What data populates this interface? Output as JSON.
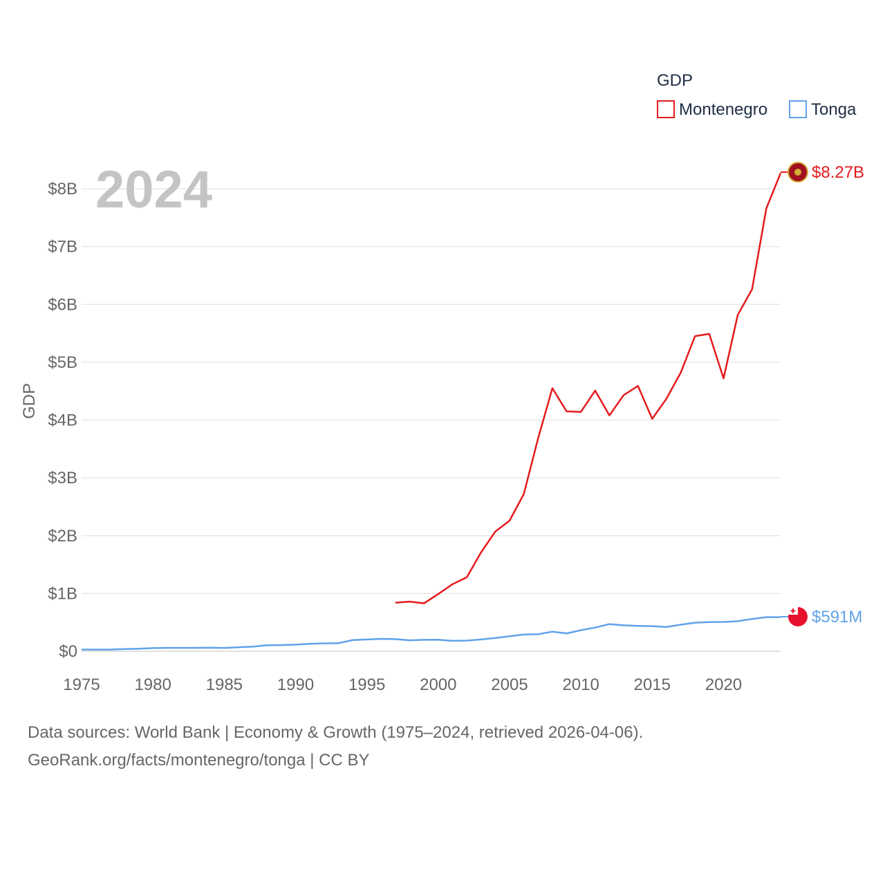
{
  "legend": {
    "title": "GDP",
    "items": [
      {
        "name": "Montenegro",
        "color": "#e41a1c"
      },
      {
        "name": "Tonga",
        "color": "#5fa2ea"
      }
    ]
  },
  "year_label": "2024",
  "end_labels": {
    "montenegro": "$8.27B",
    "tonga": "$591M"
  },
  "footer": {
    "line1": "Data sources: World Bank | Economy & Growth (1975–2024, retrieved 2026-04-06).",
    "line2": "GeoRank.org/facts/montenegro/tonga | CC BY"
  },
  "chart_data": {
    "type": "line",
    "title": "",
    "xlabel": "",
    "ylabel": "GDP",
    "xlim": [
      1975,
      2024
    ],
    "ylim": [
      0,
      8000000000
    ],
    "x_ticks": [
      1975,
      1980,
      1985,
      1990,
      1995,
      2000,
      2005,
      2010,
      2015,
      2020
    ],
    "x_tick_labels": [
      "1975",
      "1980",
      "1985",
      "1990",
      "1995",
      "2000",
      "2005",
      "2010",
      "2015",
      "2020"
    ],
    "y_ticks": [
      0,
      1000000000,
      2000000000,
      3000000000,
      4000000000,
      5000000000,
      6000000000,
      7000000000,
      8000000000
    ],
    "y_tick_labels": [
      "$0",
      "$1B",
      "$2B",
      "$3B",
      "$4B",
      "$5B",
      "$6B",
      "$7B",
      "$8B"
    ],
    "grid": true,
    "legend_position": "top-right",
    "series": [
      {
        "name": "Montenegro",
        "color": "#e41a1c",
        "x": [
          1997,
          1998,
          1999,
          2000,
          2001,
          2002,
          2003,
          2004,
          2005,
          2006,
          2007,
          2008,
          2009,
          2010,
          2011,
          2012,
          2013,
          2014,
          2015,
          2016,
          2017,
          2018,
          2019,
          2020,
          2021,
          2022,
          2023,
          2024
        ],
        "values": [
          840000000,
          860000000,
          830000000,
          990000000,
          1160000000,
          1280000000,
          1710000000,
          2070000000,
          2260000000,
          2720000000,
          3680000000,
          4550000000,
          4150000000,
          4140000000,
          4510000000,
          4080000000,
          4430000000,
          4590000000,
          4020000000,
          4370000000,
          4820000000,
          5450000000,
          5490000000,
          4720000000,
          5820000000,
          6260000000,
          7660000000,
          8270000000
        ]
      },
      {
        "name": "Tonga",
        "color": "#5fa2ea",
        "x": [
          1975,
          1976,
          1977,
          1978,
          1979,
          1980,
          1981,
          1982,
          1983,
          1984,
          1985,
          1986,
          1987,
          1988,
          1989,
          1990,
          1991,
          1992,
          1993,
          1994,
          1995,
          1996,
          1997,
          1998,
          1999,
          2000,
          2001,
          2002,
          2003,
          2004,
          2005,
          2006,
          2007,
          2008,
          2009,
          2010,
          2011,
          2012,
          2013,
          2014,
          2015,
          2016,
          2017,
          2018,
          2019,
          2020,
          2021,
          2022,
          2023,
          2024
        ],
        "values": [
          30000000,
          30000000,
          30000000,
          40000000,
          45000000,
          55000000,
          60000000,
          60000000,
          60000000,
          62000000,
          58000000,
          70000000,
          80000000,
          105000000,
          108000000,
          115000000,
          130000000,
          138000000,
          140000000,
          195000000,
          205000000,
          215000000,
          210000000,
          190000000,
          198000000,
          200000000,
          180000000,
          185000000,
          205000000,
          230000000,
          260000000,
          290000000,
          295000000,
          340000000,
          310000000,
          365000000,
          410000000,
          470000000,
          450000000,
          440000000,
          435000000,
          420000000,
          460000000,
          495000000,
          505000000,
          508000000,
          520000000,
          560000000,
          591000000,
          591000000
        ]
      }
    ]
  }
}
